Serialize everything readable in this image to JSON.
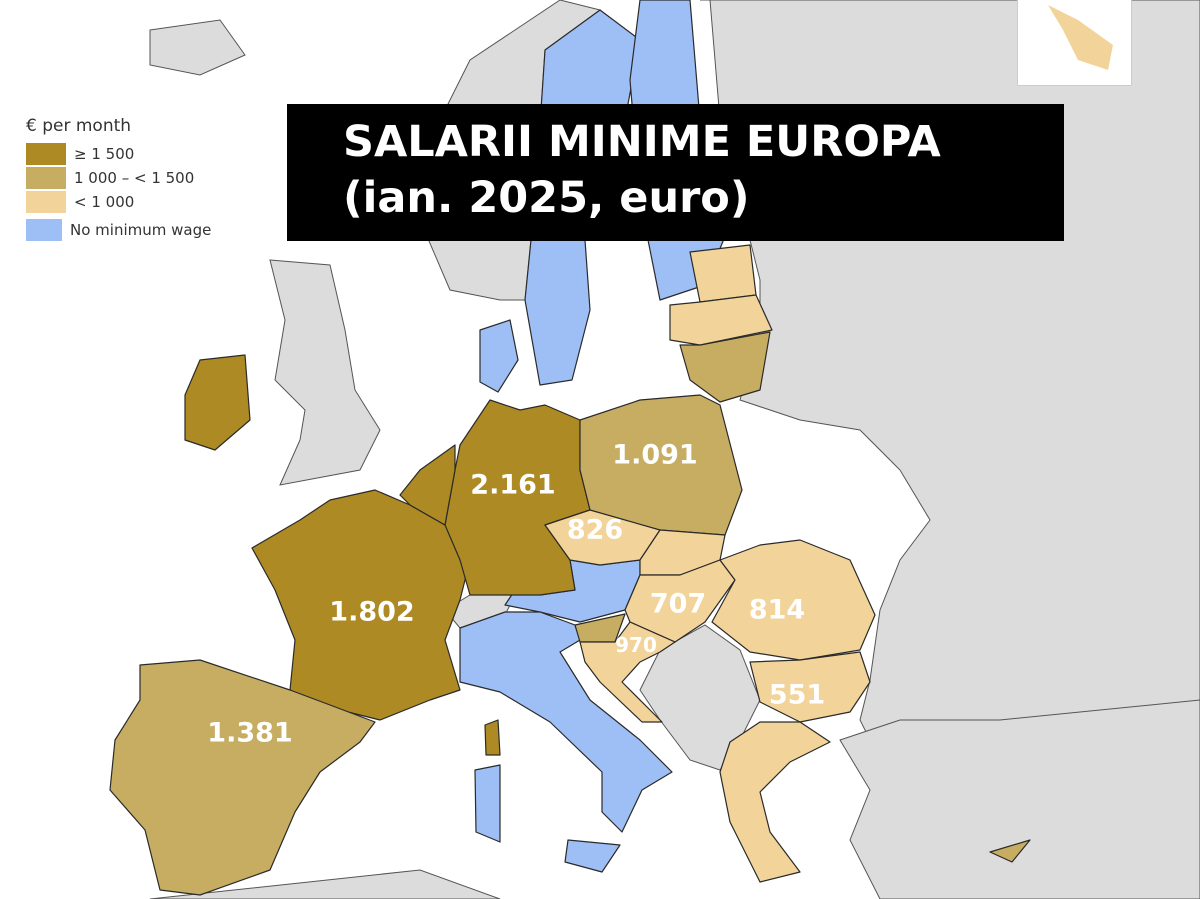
{
  "title": {
    "line1": "SALARII MINIME EUROPA",
    "line2": "(ian. 2025, euro)"
  },
  "legend": {
    "title": "€ per month",
    "items": [
      {
        "label": "≥ 1 500",
        "color": "#ad8a23"
      },
      {
        "label": "1 000 – < 1 500",
        "color": "#c7ad62"
      },
      {
        "label": "< 1 000",
        "color": "#f2d49a"
      },
      {
        "label": "No minimum wage",
        "color": "#9dbff5"
      }
    ]
  },
  "colors": {
    "no_data_land": "#dcdcdc",
    "sea": "#ffffff"
  },
  "map_labels": {
    "germany": "2.161",
    "poland": "1.091",
    "czechia": "826",
    "france": "1.802",
    "hungary": "707",
    "romania": "814",
    "croatia": "970",
    "bulgaria": "551",
    "spain": "1.381"
  }
}
